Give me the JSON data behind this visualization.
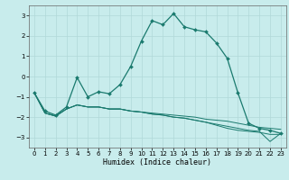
{
  "xlabel": "Humidex (Indice chaleur)",
  "bg_color": "#c8ecec",
  "grid_color": "#b0d8d8",
  "line_color": "#1a7a6e",
  "xlim": [
    -0.5,
    23.5
  ],
  "ylim": [
    -3.5,
    3.5
  ],
  "xticks": [
    0,
    1,
    2,
    3,
    4,
    5,
    6,
    7,
    8,
    9,
    10,
    11,
    12,
    13,
    14,
    15,
    16,
    17,
    18,
    19,
    20,
    21,
    22,
    23
  ],
  "yticks": [
    -3,
    -2,
    -1,
    0,
    1,
    2,
    3
  ],
  "series1_x": [
    0,
    1,
    2,
    3,
    4,
    5,
    6,
    7,
    8,
    9,
    10,
    11,
    12,
    13,
    14,
    15,
    16,
    17,
    18,
    19,
    20,
    21,
    22,
    23
  ],
  "series1_y": [
    -0.8,
    -1.7,
    -1.9,
    -1.5,
    -0.05,
    -1.0,
    -0.75,
    -0.85,
    -0.4,
    0.5,
    1.75,
    2.75,
    2.55,
    3.1,
    2.45,
    2.3,
    2.2,
    1.65,
    0.9,
    -0.8,
    -2.3,
    -2.55,
    -2.65,
    -2.8
  ],
  "series2_x": [
    0,
    1,
    2,
    3,
    4,
    5,
    6,
    7,
    8,
    9,
    10,
    11,
    12,
    13,
    14,
    15,
    16,
    17,
    18,
    19,
    20,
    21,
    22,
    23
  ],
  "series2_y": [
    -0.8,
    -1.8,
    -1.95,
    -1.6,
    -1.4,
    -1.5,
    -1.5,
    -1.6,
    -1.6,
    -1.7,
    -1.75,
    -1.8,
    -1.85,
    -1.9,
    -1.95,
    -2.0,
    -2.1,
    -2.15,
    -2.2,
    -2.3,
    -2.4,
    -2.5,
    -2.55,
    -2.6
  ],
  "series3_x": [
    0,
    1,
    2,
    3,
    4,
    5,
    6,
    7,
    8,
    9,
    10,
    11,
    12,
    13,
    14,
    15,
    16,
    17,
    18,
    19,
    20,
    21,
    22,
    23
  ],
  "series3_y": [
    -0.8,
    -1.8,
    -1.95,
    -1.6,
    -1.4,
    -1.5,
    -1.5,
    -1.6,
    -1.6,
    -1.7,
    -1.75,
    -1.85,
    -1.9,
    -2.0,
    -2.05,
    -2.15,
    -2.25,
    -2.35,
    -2.45,
    -2.55,
    -2.65,
    -2.7,
    -3.2,
    -2.8
  ],
  "series4_x": [
    0,
    1,
    2,
    3,
    4,
    5,
    6,
    7,
    8,
    9,
    10,
    11,
    12,
    13,
    14,
    15,
    16,
    17,
    18,
    19,
    20,
    21,
    22,
    23
  ],
  "series4_y": [
    -0.8,
    -1.8,
    -1.95,
    -1.6,
    -1.4,
    -1.5,
    -1.5,
    -1.6,
    -1.6,
    -1.7,
    -1.75,
    -1.85,
    -1.9,
    -2.0,
    -2.05,
    -2.15,
    -2.25,
    -2.4,
    -2.55,
    -2.65,
    -2.7,
    -2.75,
    -2.85,
    -2.85
  ]
}
